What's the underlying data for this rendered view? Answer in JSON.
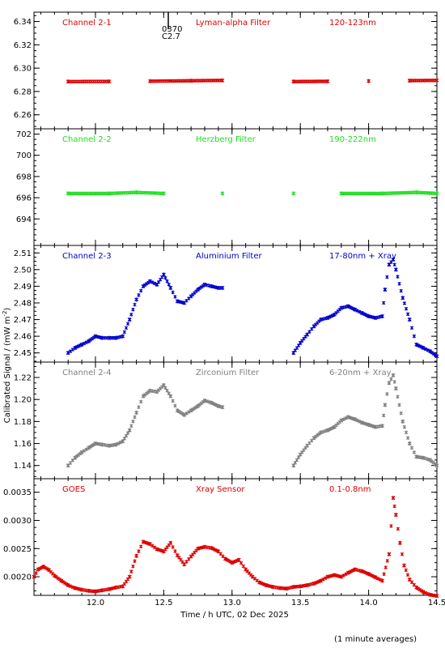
{
  "figure": {
    "ylabel": "Calibrated Signal / (mW m",
    "ylabel_sup": "-2",
    "ylabel_tail": ")",
    "xlabel": "Time / h UTC, 02 Dec 2025",
    "footnote": "(1 minute averages)",
    "flare_marker": {
      "x": 12.5,
      "label_top": "0370",
      "label_bottom": "C2.7"
    }
  },
  "chart_data": [
    {
      "type": "scatter",
      "title": "Channel 2-1",
      "labels": [
        "Channel 2-1",
        "Lyman-alpha Filter",
        "120-123nm"
      ],
      "color": "#dd0000",
      "xlim": [
        11.55,
        14.5
      ],
      "ylim": [
        6.248,
        6.348
      ],
      "yticks": [
        6.26,
        6.28,
        6.3,
        6.32,
        6.34
      ],
      "ytick_labels": [
        "6.26",
        "6.28",
        "6.30",
        "6.32",
        "6.34"
      ],
      "series": [
        {
          "x": [
            11.8,
            12.1,
            12.4,
            12.7,
            12.93,
            13.45,
            13.7,
            14.0,
            14.3,
            14.5
          ],
          "y": [
            6.2885,
            6.2886,
            6.2888,
            6.2892,
            6.2895,
            6.2885,
            6.2887,
            6.2889,
            6.2893,
            6.2895
          ]
        }
      ]
    },
    {
      "type": "scatter",
      "title": "Channel 2-2",
      "labels": [
        "Channel 2-2",
        "Herzberg Filter",
        "190-222nm"
      ],
      "color": "#22dd22",
      "xlim": [
        11.55,
        14.5
      ],
      "ylim": [
        691.5,
        702.5
      ],
      "yticks": [
        694,
        696,
        698,
        700,
        702
      ],
      "ytick_labels": [
        "694",
        "696",
        "698",
        "700",
        "702"
      ],
      "series": [
        {
          "x": [
            11.8,
            12.1,
            12.3,
            12.5,
            12.93,
            13.45,
            13.8,
            14.1,
            14.35,
            14.5
          ],
          "y": [
            696.4,
            696.4,
            696.5,
            696.4,
            696.4,
            696.4,
            696.4,
            696.4,
            696.5,
            696.4
          ]
        }
      ]
    },
    {
      "type": "scatter",
      "title": "Channel 2-3",
      "labels": [
        "Channel 2-3",
        "Aluminium Filter",
        "17-80nm + Xray"
      ],
      "color": "#0000cc",
      "xlim": [
        11.55,
        14.5
      ],
      "ylim": [
        2.4445,
        2.5145
      ],
      "yticks": [
        2.45,
        2.46,
        2.47,
        2.48,
        2.49,
        2.5,
        2.51
      ],
      "ytick_labels": [
        "2.45",
        "2.46",
        "2.47",
        "2.48",
        "2.49",
        "2.50",
        "2.51"
      ],
      "series": [
        {
          "x": [
            11.8,
            11.85,
            11.9,
            11.95,
            12.0,
            12.05,
            12.1,
            12.15,
            12.2,
            12.25,
            12.3,
            12.35,
            12.4,
            12.45,
            12.5,
            12.55,
            12.6,
            12.65,
            12.7,
            12.75,
            12.8,
            12.85,
            12.9,
            12.93,
            13.45,
            13.5,
            13.55,
            13.6,
            13.65,
            13.7,
            13.75,
            13.8,
            13.85,
            13.9,
            13.95,
            14.0,
            14.05,
            14.1,
            14.12,
            14.15,
            14.18,
            14.2,
            14.25,
            14.3,
            14.35,
            14.4,
            14.45,
            14.5
          ],
          "y": [
            2.45,
            2.453,
            2.455,
            2.457,
            2.46,
            2.459,
            2.459,
            2.459,
            2.46,
            2.47,
            2.482,
            2.49,
            2.493,
            2.491,
            2.497,
            2.489,
            2.481,
            2.48,
            2.484,
            2.488,
            2.491,
            2.49,
            2.489,
            2.489,
            2.45,
            2.456,
            2.461,
            2.466,
            2.47,
            2.471,
            2.473,
            2.477,
            2.478,
            2.476,
            2.474,
            2.472,
            2.471,
            2.472,
            2.488,
            2.503,
            2.506,
            2.5,
            2.483,
            2.47,
            2.455,
            2.453,
            2.451,
            2.448
          ]
        }
      ]
    },
    {
      "type": "scatter",
      "title": "Channel 2-4",
      "labels": [
        "Channel 2-4",
        "Zirconium Filter",
        "6-20nm + Xray"
      ],
      "color": "#808080",
      "xlim": [
        11.55,
        14.5
      ],
      "ylim": [
        1.128,
        1.234
      ],
      "yticks": [
        1.14,
        1.16,
        1.18,
        1.2,
        1.22
      ],
      "ytick_labels": [
        "1.14",
        "1.16",
        "1.18",
        "1.20",
        "1.22"
      ],
      "series": [
        {
          "x": [
            11.8,
            11.85,
            11.9,
            11.95,
            12.0,
            12.05,
            12.1,
            12.15,
            12.2,
            12.25,
            12.3,
            12.35,
            12.4,
            12.45,
            12.5,
            12.55,
            12.6,
            12.65,
            12.7,
            12.75,
            12.8,
            12.85,
            12.9,
            12.93,
            13.45,
            13.5,
            13.55,
            13.6,
            13.65,
            13.7,
            13.75,
            13.8,
            13.85,
            13.9,
            13.95,
            14.0,
            14.05,
            14.1,
            14.12,
            14.15,
            14.18,
            14.2,
            14.25,
            14.3,
            14.35,
            14.4,
            14.45,
            14.5
          ],
          "y": [
            1.14,
            1.147,
            1.152,
            1.156,
            1.16,
            1.159,
            1.158,
            1.159,
            1.162,
            1.172,
            1.188,
            1.203,
            1.208,
            1.207,
            1.213,
            1.203,
            1.19,
            1.186,
            1.19,
            1.194,
            1.199,
            1.197,
            1.194,
            1.193,
            1.14,
            1.15,
            1.158,
            1.165,
            1.17,
            1.172,
            1.175,
            1.181,
            1.184,
            1.182,
            1.179,
            1.177,
            1.175,
            1.176,
            1.195,
            1.215,
            1.222,
            1.21,
            1.18,
            1.16,
            1.148,
            1.147,
            1.145,
            1.14
          ]
        }
      ]
    },
    {
      "type": "scatter",
      "title": "GOES",
      "labels": [
        "GOES",
        "Xray Sensor",
        "0.1-0.8nm"
      ],
      "color": "#dd0000",
      "xlim": [
        11.55,
        14.5
      ],
      "ylim": [
        0.00167,
        0.00374
      ],
      "yticks": [
        0.002,
        0.0025,
        0.003,
        0.0035
      ],
      "ytick_labels": [
        "0.0020",
        "0.0025",
        "0.0030",
        "0.0035"
      ],
      "xticks": [
        12.0,
        12.5,
        13.0,
        13.5,
        14.0,
        14.5
      ],
      "xtick_labels": [
        "12.0",
        "12.5",
        "13.0",
        "13.5",
        "14.0",
        "14.5"
      ],
      "series": [
        {
          "x": [
            11.55,
            11.58,
            11.62,
            11.66,
            11.7,
            11.75,
            11.8,
            11.85,
            11.9,
            11.95,
            12.0,
            12.05,
            12.1,
            12.15,
            12.2,
            12.25,
            12.3,
            12.35,
            12.4,
            12.45,
            12.5,
            12.55,
            12.6,
            12.65,
            12.7,
            12.75,
            12.8,
            12.85,
            12.9,
            12.95,
            13.0,
            13.05,
            13.1,
            13.15,
            13.2,
            13.25,
            13.3,
            13.35,
            13.4,
            13.45,
            13.5,
            13.55,
            13.6,
            13.65,
            13.7,
            13.75,
            13.8,
            13.85,
            13.9,
            13.95,
            14.0,
            14.05,
            14.1,
            14.15,
            14.18,
            14.2,
            14.23,
            14.26,
            14.3,
            14.35,
            14.4,
            14.45,
            14.5
          ],
          "y": [
            0.002,
            0.00213,
            0.00218,
            0.00212,
            0.00202,
            0.00193,
            0.00185,
            0.0018,
            0.00177,
            0.00175,
            0.00174,
            0.00176,
            0.00178,
            0.00181,
            0.00183,
            0.002,
            0.00237,
            0.00262,
            0.00258,
            0.00249,
            0.00245,
            0.0026,
            0.00238,
            0.00222,
            0.00236,
            0.0025,
            0.00253,
            0.00251,
            0.00245,
            0.00232,
            0.00225,
            0.0023,
            0.00213,
            0.002,
            0.0019,
            0.00185,
            0.00182,
            0.0018,
            0.00179,
            0.00182,
            0.00183,
            0.00185,
            0.00188,
            0.00193,
            0.002,
            0.00203,
            0.002,
            0.00207,
            0.00213,
            0.0021,
            0.00205,
            0.00199,
            0.00193,
            0.0024,
            0.0034,
            0.0031,
            0.0026,
            0.0022,
            0.00195,
            0.00181,
            0.00173,
            0.00168,
            0.00166
          ]
        }
      ]
    }
  ]
}
